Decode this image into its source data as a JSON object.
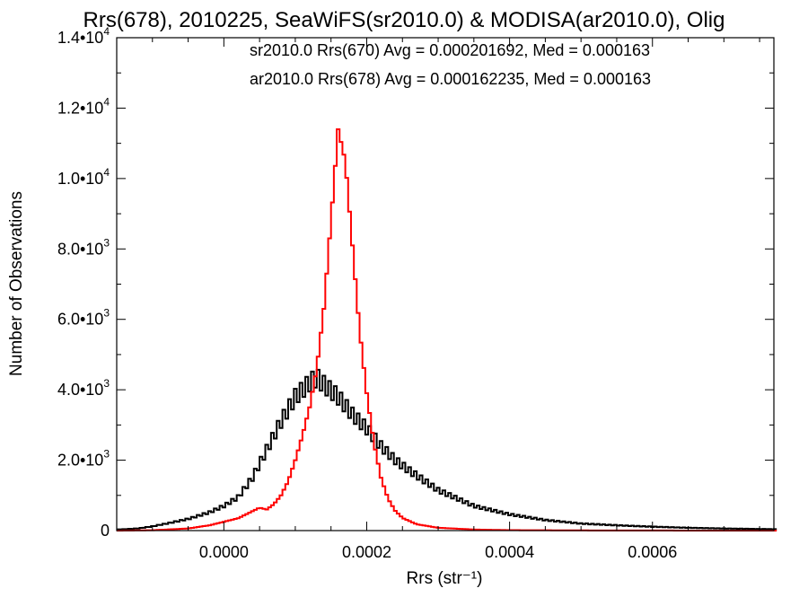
{
  "chart_data": {
    "type": "histogram",
    "title": "Rrs(678), 2010225, SeaWiFS(sr2010.0) & MODISA(ar2010.0), Olig",
    "xlabel": "Rrs (str⁻¹)",
    "ylabel": "Number of Observations",
    "xlim": [
      -0.00015,
      0.00077
    ],
    "ylim": [
      0,
      14000
    ],
    "x_ticks": [
      {
        "value": 0.0,
        "label": "0.0000"
      },
      {
        "value": 0.0002,
        "label": "0.0002"
      },
      {
        "value": 0.0004,
        "label": "0.0004"
      },
      {
        "value": 0.0006,
        "label": "0.0006"
      }
    ],
    "y_ticks": [
      {
        "value": 0,
        "mantissa": "0",
        "exp": ""
      },
      {
        "value": 2000,
        "mantissa": "2.0•10",
        "exp": "3"
      },
      {
        "value": 4000,
        "mantissa": "4.0•10",
        "exp": "3"
      },
      {
        "value": 6000,
        "mantissa": "6.0•10",
        "exp": "3"
      },
      {
        "value": 8000,
        "mantissa": "8.0•10",
        "exp": "3"
      },
      {
        "value": 10000,
        "mantissa": "1.0•10",
        "exp": "4"
      },
      {
        "value": 12000,
        "mantissa": "1.2•10",
        "exp": "4"
      },
      {
        "value": 14000,
        "mantissa": "1.4•10",
        "exp": "4"
      }
    ],
    "legend": [
      {
        "text": "sr2010.0 Rrs(670) Avg = 0.000201692, Med = 0.000163",
        "color": "#000000"
      },
      {
        "text": "ar2010.0 Rrs(678) Avg = 0.000162235, Med = 0.000163",
        "color": "#ff0000"
      }
    ],
    "legend_placement": "top-right",
    "series": [
      {
        "name": "sr2010.0",
        "color": "#000000",
        "points": [
          [
            -0.00015,
            30
          ],
          [
            -0.00012,
            60
          ],
          [
            -0.0001,
            120
          ],
          [
            -8e-05,
            200
          ],
          [
            -5e-05,
            330
          ],
          [
            -2e-05,
            520
          ],
          [
            0.0,
            700
          ],
          [
            2e-05,
            950
          ],
          [
            4e-05,
            1500
          ],
          [
            5e-05,
            1900
          ],
          [
            6e-05,
            2300
          ],
          [
            8e-05,
            3100
          ],
          [
            0.0001,
            3800
          ],
          [
            0.00012,
            4200
          ],
          [
            0.00013,
            4350
          ],
          [
            0.00014,
            4150
          ],
          [
            0.00016,
            3800
          ],
          [
            0.00018,
            3300
          ],
          [
            0.0002,
            2900
          ],
          [
            0.00022,
            2400
          ],
          [
            0.00024,
            2000
          ],
          [
            0.00026,
            1700
          ],
          [
            0.0003,
            1150
          ],
          [
            0.00035,
            700
          ],
          [
            0.0004,
            460
          ],
          [
            0.00045,
            300
          ],
          [
            0.0005,
            200
          ],
          [
            0.00055,
            150
          ],
          [
            0.0006,
            110
          ],
          [
            0.00065,
            80
          ],
          [
            0.0007,
            60
          ],
          [
            0.00077,
            40
          ]
        ]
      },
      {
        "name": "ar2010.0",
        "color": "#ff0000",
        "points": [
          [
            -0.00015,
            0
          ],
          [
            -0.0001,
            10
          ],
          [
            -5e-05,
            60
          ],
          [
            -2e-05,
            150
          ],
          [
            0.0,
            250
          ],
          [
            2e-05,
            350
          ],
          [
            4e-05,
            550
          ],
          [
            5e-05,
            650
          ],
          [
            6e-05,
            600
          ],
          [
            7e-05,
            750
          ],
          [
            8e-05,
            1000
          ],
          [
            9e-05,
            1400
          ],
          [
            0.0001,
            2000
          ],
          [
            0.00011,
            2700
          ],
          [
            0.00012,
            3500
          ],
          [
            0.00013,
            4600
          ],
          [
            0.00014,
            6300
          ],
          [
            0.00015,
            8800
          ],
          [
            0.00016,
            11400
          ],
          [
            0.00017,
            10500
          ],
          [
            0.00018,
            8100
          ],
          [
            0.00019,
            5700
          ],
          [
            0.0002,
            3900
          ],
          [
            0.00021,
            2500
          ],
          [
            0.00022,
            1500
          ],
          [
            0.00023,
            900
          ],
          [
            0.00024,
            560
          ],
          [
            0.00025,
            360
          ],
          [
            0.00027,
            180
          ],
          [
            0.0003,
            80
          ],
          [
            0.00035,
            30
          ],
          [
            0.0004,
            12
          ],
          [
            0.0005,
            5
          ],
          [
            0.0006,
            2
          ],
          [
            0.00077,
            0
          ]
        ]
      }
    ],
    "grid": false
  }
}
